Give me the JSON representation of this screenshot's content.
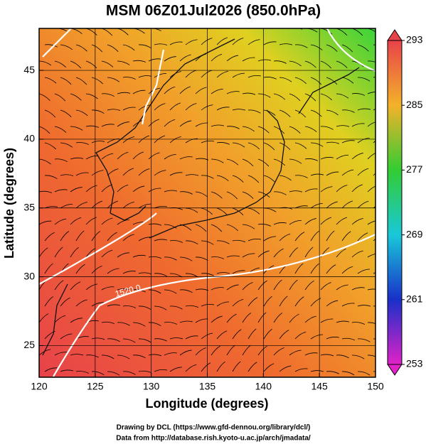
{
  "title": "MSM 06Z01Jul2026 (850.0hPa)",
  "map": {
    "xlabel": "Longitude (degrees)",
    "ylabel": "Latitude  (degrees)",
    "xlim": [
      120,
      150
    ],
    "ylim": [
      22.7,
      48.05
    ],
    "xticks": [
      120,
      125,
      130,
      135,
      140,
      145,
      150
    ],
    "yticks": [
      25,
      30,
      35,
      40,
      45
    ],
    "annotation": "1520.0"
  },
  "colorbar": {
    "lim": [
      253,
      293
    ],
    "ticks": [
      253,
      261,
      269,
      277,
      285,
      293
    ]
  },
  "footer": [
    "Drawing by DCL (https://www.gfd-dennou.org/library/dcl/)",
    "Data from http://database.rish.kyoto-u.ac.jp/arch/jmadata/"
  ]
}
